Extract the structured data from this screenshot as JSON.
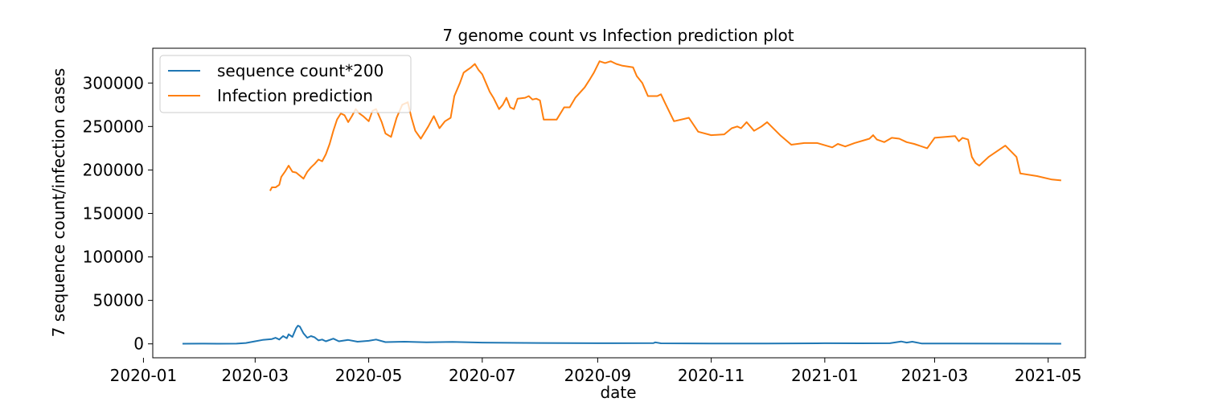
{
  "chart_data": {
    "type": "line",
    "title": "7 genome count vs Infection prediction plot",
    "xlabel": "date",
    "ylabel": "7 sequence count/infection cases",
    "xlim": [
      "2020-01-06",
      "2021-05-21"
    ],
    "ylim": [
      -16000,
      340000
    ],
    "x_ticks": [
      "2020-01",
      "2020-03",
      "2020-05",
      "2020-07",
      "2020-09",
      "2020-11",
      "2021-01",
      "2021-03",
      "2021-05"
    ],
    "y_ticks": [
      0,
      50000,
      100000,
      150000,
      200000,
      250000,
      300000
    ],
    "grid": false,
    "legend": "top-left",
    "series": [
      {
        "name": "sequence count*200",
        "color": "#1f77b4",
        "points": [
          [
            "2020-01-22",
            200
          ],
          [
            "2020-02-01",
            300
          ],
          [
            "2020-02-10",
            200
          ],
          [
            "2020-02-20",
            300
          ],
          [
            "2020-02-25",
            1000
          ],
          [
            "2020-03-01",
            3000
          ],
          [
            "2020-03-05",
            4500
          ],
          [
            "2020-03-10",
            5500
          ],
          [
            "2020-03-12",
            7000
          ],
          [
            "2020-03-14",
            5000
          ],
          [
            "2020-03-16",
            9000
          ],
          [
            "2020-03-18",
            6500
          ],
          [
            "2020-03-19",
            11000
          ],
          [
            "2020-03-21",
            8000
          ],
          [
            "2020-03-23",
            18000
          ],
          [
            "2020-03-24",
            21000
          ],
          [
            "2020-03-25",
            20000
          ],
          [
            "2020-03-27",
            12000
          ],
          [
            "2020-03-29",
            7000
          ],
          [
            "2020-03-31",
            9000
          ],
          [
            "2020-04-02",
            7500
          ],
          [
            "2020-04-04",
            4000
          ],
          [
            "2020-04-06",
            5000
          ],
          [
            "2020-04-08",
            3000
          ],
          [
            "2020-04-12",
            6000
          ],
          [
            "2020-04-15",
            3000
          ],
          [
            "2020-04-20",
            4500
          ],
          [
            "2020-04-25",
            2500
          ],
          [
            "2020-05-01",
            3500
          ],
          [
            "2020-05-05",
            5000
          ],
          [
            "2020-05-10",
            2000
          ],
          [
            "2020-05-20",
            2500
          ],
          [
            "2020-06-01",
            1800
          ],
          [
            "2020-06-15",
            2200
          ],
          [
            "2020-07-01",
            1500
          ],
          [
            "2020-08-01",
            1000
          ],
          [
            "2020-09-01",
            700
          ],
          [
            "2020-10-01",
            900
          ],
          [
            "2020-10-02",
            1800
          ],
          [
            "2020-10-05",
            600
          ],
          [
            "2020-11-01",
            500
          ],
          [
            "2020-12-01",
            400
          ],
          [
            "2021-01-01",
            700
          ],
          [
            "2021-01-20",
            600
          ],
          [
            "2021-02-05",
            700
          ],
          [
            "2021-02-11",
            2800
          ],
          [
            "2021-02-14",
            1500
          ],
          [
            "2021-02-17",
            2500
          ],
          [
            "2021-02-22",
            500
          ],
          [
            "2021-03-10",
            400
          ],
          [
            "2021-05-08",
            200
          ]
        ]
      },
      {
        "name": "Infection prediction",
        "color": "#ff7f0e",
        "points": [
          [
            "2020-03-09",
            176000
          ],
          [
            "2020-03-10",
            180000
          ],
          [
            "2020-03-12",
            180000
          ],
          [
            "2020-03-14",
            183000
          ],
          [
            "2020-03-15",
            192000
          ],
          [
            "2020-03-17",
            198000
          ],
          [
            "2020-03-19",
            205000
          ],
          [
            "2020-03-21",
            198000
          ],
          [
            "2020-03-23",
            197000
          ],
          [
            "2020-03-27",
            190000
          ],
          [
            "2020-03-29",
            198000
          ],
          [
            "2020-03-31",
            203000
          ],
          [
            "2020-04-02",
            207000
          ],
          [
            "2020-04-04",
            212000
          ],
          [
            "2020-04-06",
            210000
          ],
          [
            "2020-04-08",
            218000
          ],
          [
            "2020-04-10",
            230000
          ],
          [
            "2020-04-12",
            245000
          ],
          [
            "2020-04-14",
            258000
          ],
          [
            "2020-04-16",
            265000
          ],
          [
            "2020-04-18",
            263000
          ],
          [
            "2020-04-20",
            255000
          ],
          [
            "2020-04-22",
            262000
          ],
          [
            "2020-04-24",
            270000
          ],
          [
            "2020-04-26",
            265000
          ],
          [
            "2020-04-28",
            262000
          ],
          [
            "2020-05-01",
            256000
          ],
          [
            "2020-05-03",
            268000
          ],
          [
            "2020-05-05",
            270000
          ],
          [
            "2020-05-08",
            255000
          ],
          [
            "2020-05-10",
            242000
          ],
          [
            "2020-05-13",
            238000
          ],
          [
            "2020-05-16",
            260000
          ],
          [
            "2020-05-19",
            275000
          ],
          [
            "2020-05-22",
            278000
          ],
          [
            "2020-05-24",
            260000
          ],
          [
            "2020-05-26",
            245000
          ],
          [
            "2020-05-29",
            236000
          ],
          [
            "2020-06-02",
            250000
          ],
          [
            "2020-06-05",
            262000
          ],
          [
            "2020-06-08",
            248000
          ],
          [
            "2020-06-11",
            256000
          ],
          [
            "2020-06-14",
            260000
          ],
          [
            "2020-06-16",
            285000
          ],
          [
            "2020-06-19",
            300000
          ],
          [
            "2020-06-21",
            312000
          ],
          [
            "2020-06-23",
            315000
          ],
          [
            "2020-06-25",
            318000
          ],
          [
            "2020-06-27",
            322000
          ],
          [
            "2020-06-29",
            315000
          ],
          [
            "2020-07-01",
            310000
          ],
          [
            "2020-07-03",
            300000
          ],
          [
            "2020-07-05",
            290000
          ],
          [
            "2020-07-07",
            283000
          ],
          [
            "2020-07-10",
            270000
          ],
          [
            "2020-07-12",
            275000
          ],
          [
            "2020-07-14",
            283000
          ],
          [
            "2020-07-16",
            272000
          ],
          [
            "2020-07-18",
            270000
          ],
          [
            "2020-07-20",
            282000
          ],
          [
            "2020-07-24",
            283000
          ],
          [
            "2020-07-26",
            285000
          ],
          [
            "2020-07-28",
            281000
          ],
          [
            "2020-07-30",
            282000
          ],
          [
            "2020-08-01",
            280000
          ],
          [
            "2020-08-03",
            258000
          ],
          [
            "2020-08-10",
            258000
          ],
          [
            "2020-08-14",
            272000
          ],
          [
            "2020-08-17",
            272000
          ],
          [
            "2020-08-20",
            283000
          ],
          [
            "2020-08-25",
            295000
          ],
          [
            "2020-08-28",
            305000
          ],
          [
            "2020-08-30",
            312000
          ],
          [
            "2020-09-02",
            325000
          ],
          [
            "2020-09-05",
            323000
          ],
          [
            "2020-09-08",
            325000
          ],
          [
            "2020-09-11",
            322000
          ],
          [
            "2020-09-14",
            320000
          ],
          [
            "2020-09-20",
            318000
          ],
          [
            "2020-09-22",
            308000
          ],
          [
            "2020-09-25",
            300000
          ],
          [
            "2020-09-28",
            285000
          ],
          [
            "2020-10-03",
            285000
          ],
          [
            "2020-10-05",
            287000
          ],
          [
            "2020-10-07",
            278000
          ],
          [
            "2020-10-12",
            256000
          ],
          [
            "2020-10-20",
            260000
          ],
          [
            "2020-10-25",
            244000
          ],
          [
            "2020-11-01",
            240000
          ],
          [
            "2020-11-08",
            241000
          ],
          [
            "2020-11-12",
            248000
          ],
          [
            "2020-11-15",
            250000
          ],
          [
            "2020-11-17",
            248000
          ],
          [
            "2020-11-20",
            255000
          ],
          [
            "2020-11-24",
            245000
          ],
          [
            "2020-11-28",
            250000
          ],
          [
            "2020-12-01",
            255000
          ],
          [
            "2020-12-08",
            240000
          ],
          [
            "2020-12-14",
            229000
          ],
          [
            "2020-12-21",
            231000
          ],
          [
            "2020-12-28",
            231000
          ],
          [
            "2021-01-05",
            226000
          ],
          [
            "2021-01-08",
            230000
          ],
          [
            "2021-01-12",
            227000
          ],
          [
            "2021-01-17",
            231000
          ],
          [
            "2021-01-25",
            236000
          ],
          [
            "2021-01-27",
            240000
          ],
          [
            "2021-01-29",
            235000
          ],
          [
            "2021-02-02",
            232000
          ],
          [
            "2021-02-06",
            237000
          ],
          [
            "2021-02-10",
            236000
          ],
          [
            "2021-02-14",
            232000
          ],
          [
            "2021-02-18",
            230000
          ],
          [
            "2021-02-25",
            225000
          ],
          [
            "2021-03-01",
            237000
          ],
          [
            "2021-03-12",
            239000
          ],
          [
            "2021-03-14",
            233000
          ],
          [
            "2021-03-16",
            237000
          ],
          [
            "2021-03-19",
            235000
          ],
          [
            "2021-03-21",
            215000
          ],
          [
            "2021-03-23",
            208000
          ],
          [
            "2021-03-25",
            205000
          ],
          [
            "2021-03-30",
            215000
          ],
          [
            "2021-04-08",
            228000
          ],
          [
            "2021-04-14",
            215000
          ],
          [
            "2021-04-16",
            196000
          ],
          [
            "2021-04-25",
            193000
          ],
          [
            "2021-05-03",
            189000
          ],
          [
            "2021-05-08",
            188000
          ]
        ]
      }
    ]
  }
}
